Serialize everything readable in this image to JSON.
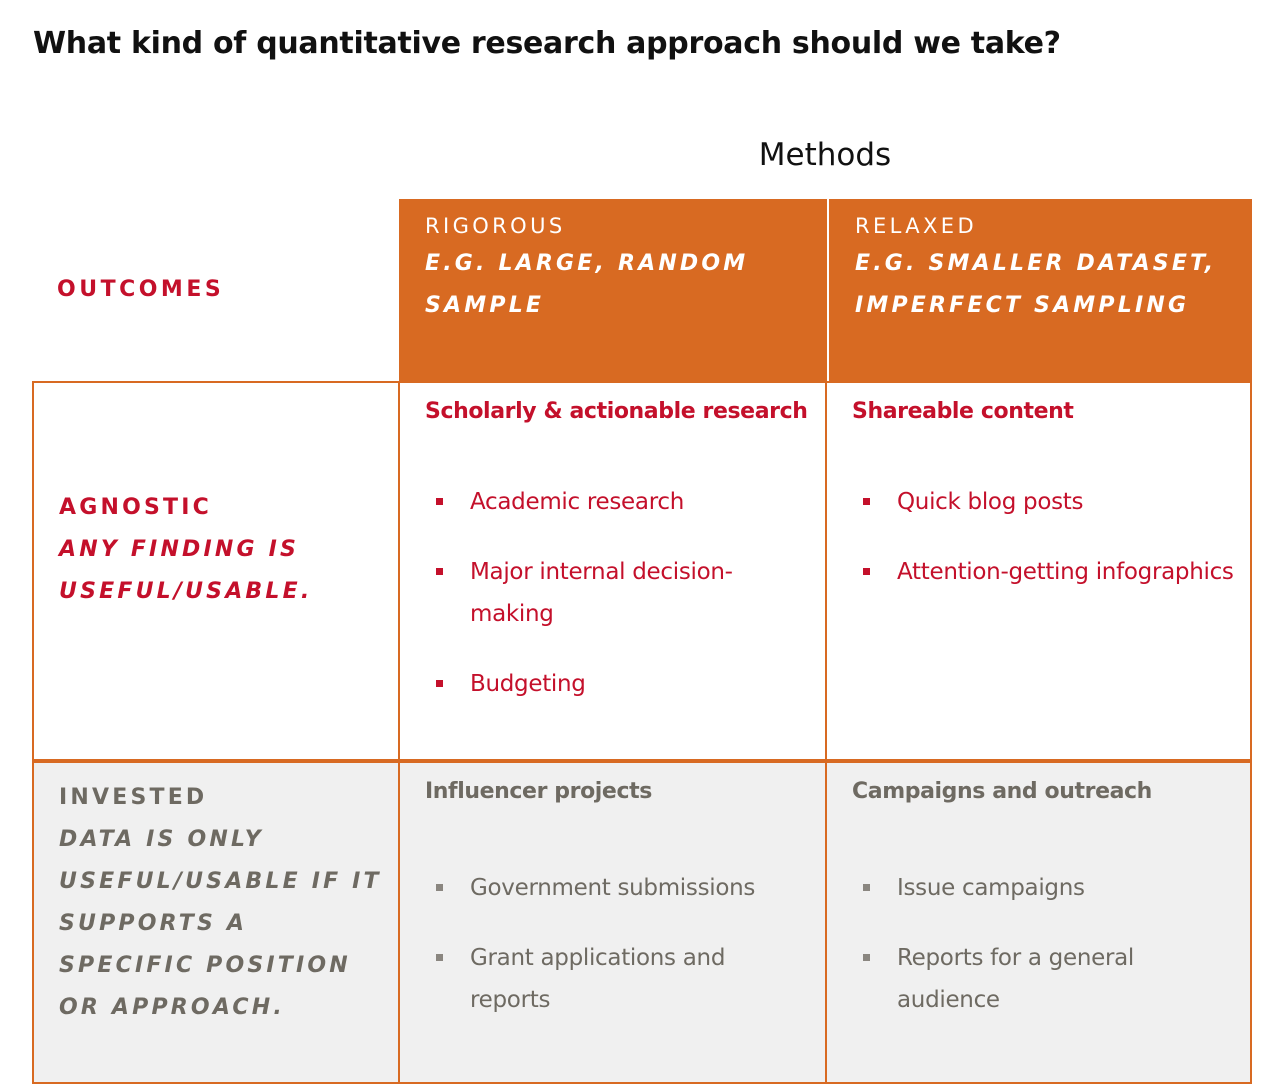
{
  "title": "What kind of quantitative research approach should we take?",
  "methods_heading": "Methods",
  "outcomes_label": "OUTCOMES",
  "columns": [
    {
      "label": "RIGOROUS",
      "sublabel": "E.G. LARGE, RANDOM SAMPLE"
    },
    {
      "label": "RELAXED",
      "sublabel": "E.G. SMALLER DATASET, IMPERFECT SAMPLING"
    }
  ],
  "rows": [
    {
      "label": "AGNOSTIC",
      "sublabel": "ANY FINDING IS USEFUL/USABLE.",
      "cells": [
        {
          "title": "Scholarly & actionable research",
          "items": [
            "Academic research",
            "Major internal decision-making",
            "Budgeting"
          ]
        },
        {
          "title": "Shareable content",
          "items": [
            "Quick blog posts",
            "Attention-getting infographics"
          ]
        }
      ]
    },
    {
      "label": "INVESTED",
      "sublabel": "DATA IS ONLY USEFUL/USABLE IF IT SUPPORTS A SPECIFIC POSITION OR APPROACH.",
      "cells": [
        {
          "title": "Influencer projects",
          "items": [
            "Government submissions",
            "Grant applications and reports"
          ]
        },
        {
          "title": "Campaigns and outreach",
          "items": [
            "Issue campaigns",
            "Reports for a general audience"
          ]
        }
      ]
    }
  ],
  "colors": {
    "header_orange": "#d86a22",
    "accent_red": "#c4102b",
    "muted_gray": "#6e6a62",
    "row_gray_bg": "#f0f0f0"
  }
}
